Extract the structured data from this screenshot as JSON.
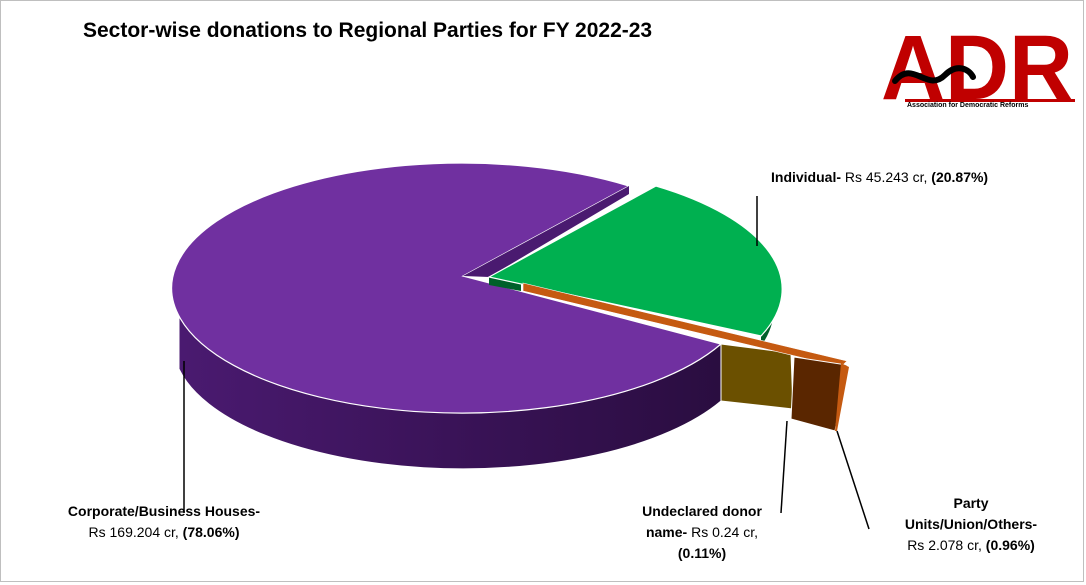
{
  "chart_data": {
    "type": "pie",
    "title": "Sector-wise donations to Regional Parties for FY 2022-23",
    "slices": [
      {
        "name": "Corporate/Business Houses",
        "amount": "Rs 169.204 cr",
        "percent": "(78.06%)",
        "value": 78.06,
        "color": "#7030a0"
      },
      {
        "name": "Individual",
        "amount": "Rs 45.243 cr",
        "percent": "(20.87%)",
        "value": 20.87,
        "color": "#00b050"
      },
      {
        "name": "Undeclared donor name",
        "amount": "Rs 0.24 cr",
        "percent": "(0.11%)",
        "value": 0.11,
        "color": "#7f6000"
      },
      {
        "name": "Party Units/Union/Others",
        "amount": "Rs 2.078 cr",
        "percent": "(0.96%)",
        "value": 0.96,
        "color": "#c55a11"
      }
    ]
  },
  "labels": {
    "individual": {
      "name": "Individual-",
      "amount": " Rs 45.243 cr, ",
      "percent": "(20.87%)"
    },
    "corporate": {
      "name": "Corporate/Business Houses-",
      "amount": "Rs 169.204 cr, ",
      "percent": "(78.06%)"
    },
    "undeclared": {
      "name_line1": "Undeclared donor",
      "name_line2": "name-",
      "amount": " Rs 0.24 cr,",
      "percent": "(0.11%)"
    },
    "party": {
      "name_line1": "Party",
      "name_line2": "Units/Union/Others-",
      "amount": "Rs 2.078 cr, ",
      "percent": "(0.96%)"
    }
  },
  "logo": {
    "text": "ADR",
    "tagline": "Association for Democratic Reforms",
    "color": "#c00000"
  }
}
